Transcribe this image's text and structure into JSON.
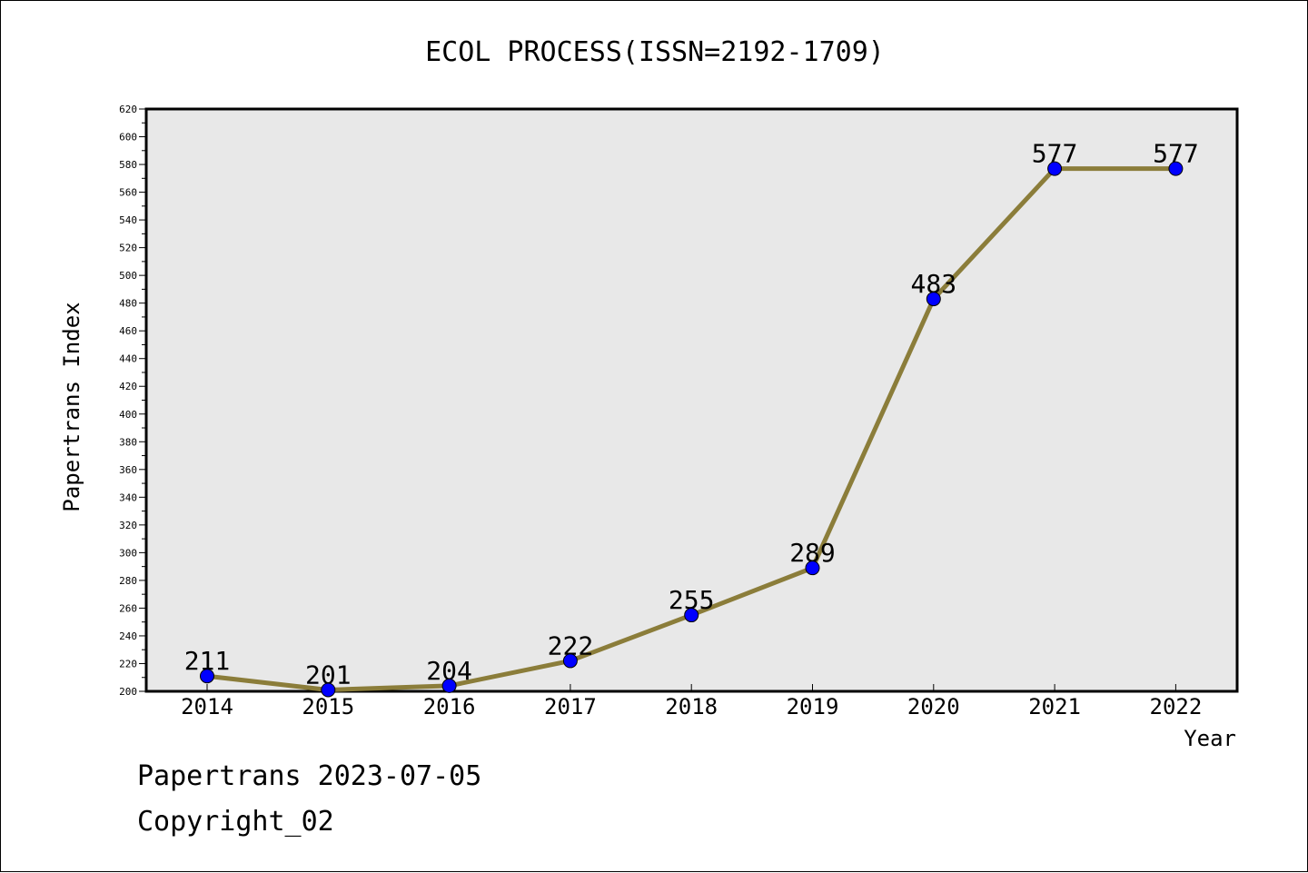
{
  "chart_data": {
    "type": "line",
    "title": "ECOL PROCESS(ISSN=2192-1709)",
    "xlabel": "Year",
    "ylabel": "Papertrans Index",
    "x": [
      "2014",
      "2015",
      "2016",
      "2017",
      "2018",
      "2019",
      "2020",
      "2021",
      "2022"
    ],
    "series": [
      {
        "values": [
          211,
          201,
          204,
          222,
          255,
          289,
          483,
          577,
          577
        ]
      }
    ],
    "data_labels": [
      "211",
      "201",
      "204",
      "222",
      "255",
      "289",
      "483",
      "577",
      "577"
    ],
    "ylim": [
      200,
      620
    ],
    "yticks": [
      200,
      220,
      240,
      260,
      280,
      300,
      320,
      340,
      360,
      380,
      400,
      420,
      440,
      460,
      480,
      500,
      520,
      540,
      560,
      580,
      600,
      620
    ],
    "grid": false,
    "colors": {
      "line": "#8B7D3A",
      "marker": "#0000FF",
      "plot_background": "#E8E8E8"
    }
  },
  "footer": {
    "line1": "Papertrans 2023-07-05",
    "line2": "Copyright_02"
  }
}
